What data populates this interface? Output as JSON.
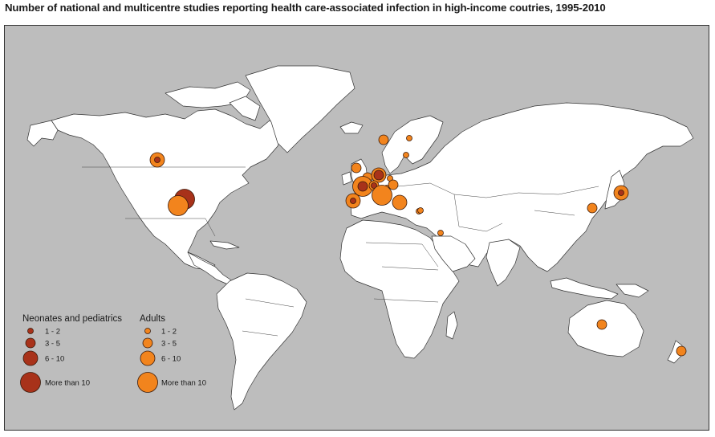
{
  "title": "Number of national and multicentre studies reporting health care-associated infection in high-income coutries, 1995-2010",
  "colors": {
    "ocean": "#bdbdbd",
    "land": "#ffffff",
    "neonates": "#a8321a",
    "adults": "#f2841d",
    "outline": "#3a1a0a"
  },
  "legend": {
    "neonates_title": "Neonates and pediatrics",
    "adults_title": "Adults",
    "classes": [
      {
        "label": "1 - 2"
      },
      {
        "label": "3 - 5"
      },
      {
        "label": "6 - 10"
      },
      {
        "label": "More than 10"
      }
    ]
  },
  "markers": [
    {
      "location": "Canada",
      "group": "adults",
      "class": 2
    },
    {
      "location": "Canada",
      "group": "neonates",
      "class": 0
    },
    {
      "location": "USA",
      "group": "neonates",
      "class": 3
    },
    {
      "location": "USA",
      "group": "adults",
      "class": 3
    },
    {
      "location": "Norway",
      "group": "adults",
      "class": 1
    },
    {
      "location": "Finland",
      "group": "adults",
      "class": 0
    },
    {
      "location": "Sweden",
      "group": "adults",
      "class": 0
    },
    {
      "location": "United Kingdom",
      "group": "adults",
      "class": 1
    },
    {
      "location": "Netherlands/Belgium",
      "group": "adults",
      "class": 1
    },
    {
      "location": "Germany",
      "group": "adults",
      "class": 2
    },
    {
      "location": "Germany",
      "group": "neonates",
      "class": 1
    },
    {
      "location": "Poland",
      "group": "adults",
      "class": 0
    },
    {
      "location": "France",
      "group": "adults",
      "class": 3
    },
    {
      "location": "France",
      "group": "neonates",
      "class": 1
    },
    {
      "location": "Switzerland",
      "group": "adults",
      "class": 1
    },
    {
      "location": "Switzerland",
      "group": "neonates",
      "class": 0
    },
    {
      "location": "Austria",
      "group": "adults",
      "class": 0
    },
    {
      "location": "Italy",
      "group": "adults",
      "class": 3
    },
    {
      "location": "Slovenia/Croatia",
      "group": "adults",
      "class": 1
    },
    {
      "location": "Spain",
      "group": "adults",
      "class": 2
    },
    {
      "location": "Spain",
      "group": "neonates",
      "class": 0
    },
    {
      "location": "Greece",
      "group": "adults",
      "class": 2
    },
    {
      "location": "Cyprus",
      "group": "adults",
      "class": 0
    },
    {
      "location": "Israel",
      "group": "adults",
      "class": 0
    },
    {
      "location": "Saudi Arabia",
      "group": "adults",
      "class": 0
    },
    {
      "location": "Japan",
      "group": "adults",
      "class": 2
    },
    {
      "location": "Japan",
      "group": "neonates",
      "class": 0
    },
    {
      "location": "Republic of Korea",
      "group": "adults",
      "class": 1
    },
    {
      "location": "Australia",
      "group": "adults",
      "class": 1
    },
    {
      "location": "New Zealand",
      "group": "adults",
      "class": 1
    }
  ]
}
